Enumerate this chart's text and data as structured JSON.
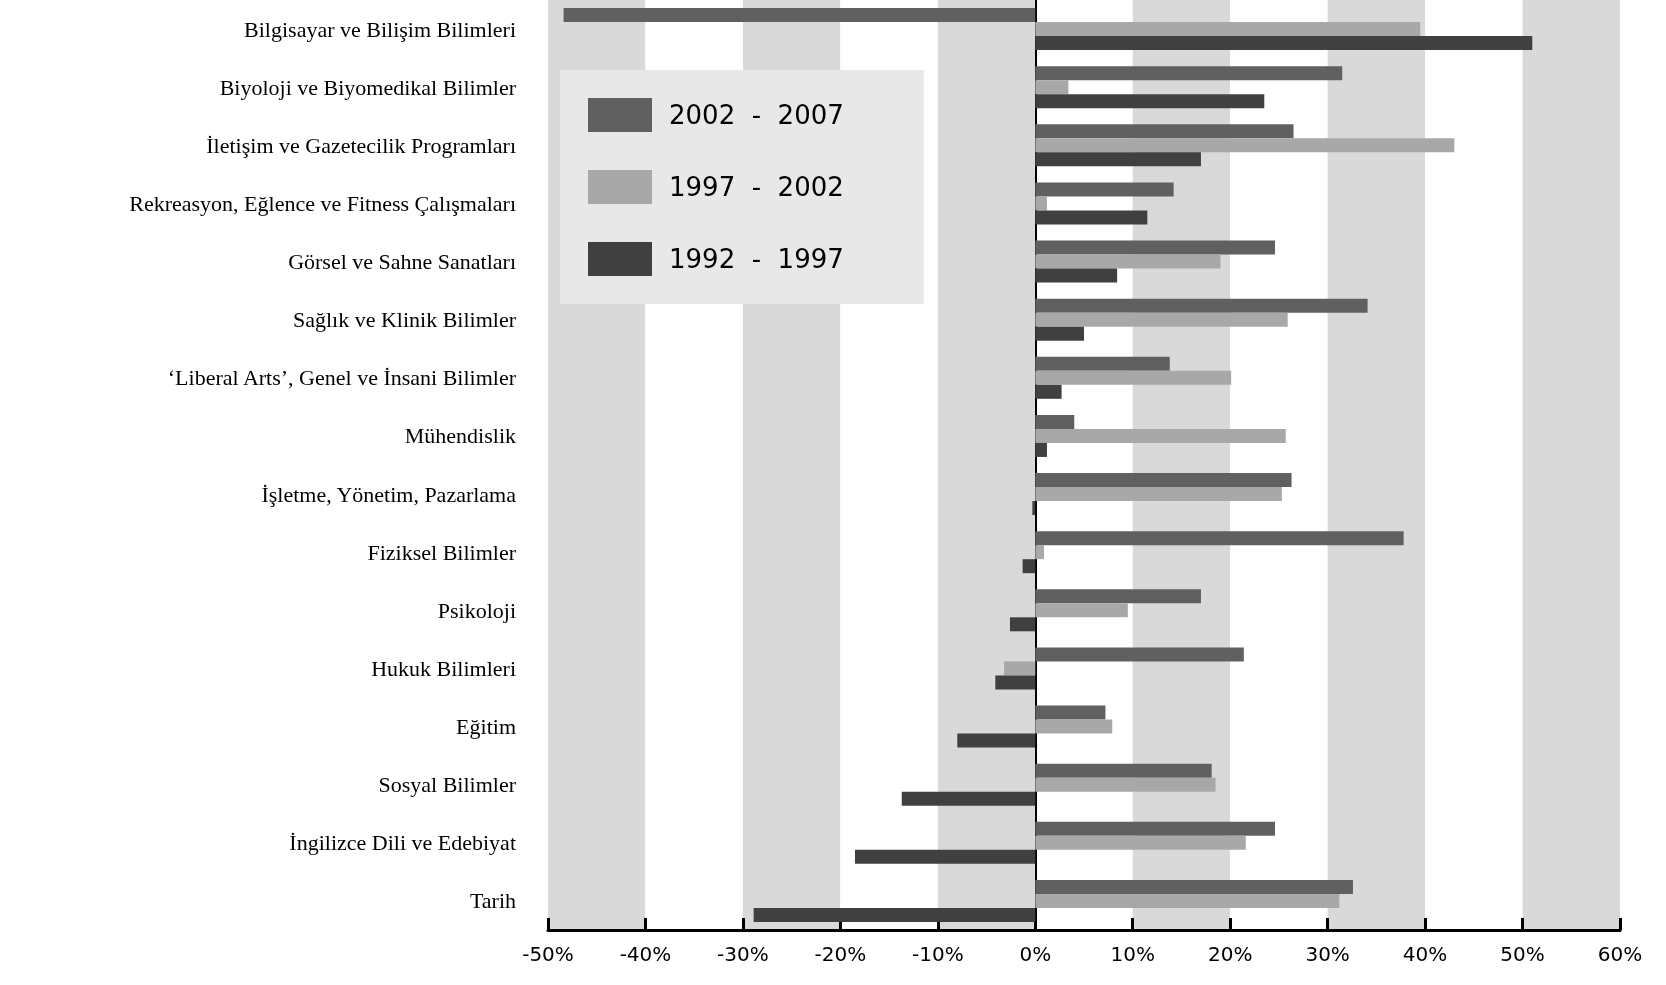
{
  "chart_data": {
    "type": "bar",
    "orientation": "horizontal",
    "categories": [
      "Bilgisayar ve Bilişim Bilimleri",
      "Biyoloji ve Biyomedikal Bilimler",
      "İletişim ve Gazetecilik Programları",
      "Rekreasyon, Eğlence ve Fitness Çalışmaları",
      "Görsel ve Sahne Sanatları",
      "Sağlık ve Klinik Bilimler",
      "‘Liberal Arts’, Genel ve İnsani Bilimler",
      "Mühendislik",
      "İşletme, Yönetim, Pazarlama",
      "Fiziksel Bilimler",
      "Psikoloji",
      "Hukuk Bilimleri",
      "Eğitim",
      "Sosyal Bilimler",
      "İngilizce Dili ve Edebiyat",
      "Tarih"
    ],
    "series": [
      {
        "name": "2002  -  2007",
        "color": "#606060",
        "values": [
          -48.4,
          31.5,
          26.5,
          14.2,
          24.6,
          34.1,
          13.8,
          4.0,
          26.3,
          37.8,
          17.0,
          21.4,
          7.2,
          18.1,
          24.6,
          32.6
        ]
      },
      {
        "name": "1997  -  2002",
        "color": "#a8a8a8",
        "values": [
          39.5,
          3.4,
          43.0,
          1.2,
          19.0,
          25.9,
          20.1,
          25.7,
          25.3,
          0.9,
          9.5,
          -3.2,
          7.9,
          18.5,
          21.6,
          31.2
        ]
      },
      {
        "name": "1992  -  1997",
        "color": "#404040",
        "values": [
          51.0,
          23.5,
          17.0,
          11.5,
          8.4,
          5.0,
          2.7,
          1.2,
          -0.3,
          -1.3,
          -2.6,
          -4.1,
          -8.0,
          -13.7,
          -18.5,
          -28.9
        ]
      }
    ],
    "xlim": [
      -50,
      60
    ],
    "xticks": [
      {
        "value": -50,
        "label": "-50%"
      },
      {
        "value": -40,
        "label": "-40%"
      },
      {
        "value": -30,
        "label": "-30%"
      },
      {
        "value": -20,
        "label": "-20%"
      },
      {
        "value": -10,
        "label": "-10%"
      },
      {
        "value": 0,
        "label": "0%"
      },
      {
        "value": 10,
        "label": "10%"
      },
      {
        "value": 20,
        "label": "20%"
      },
      {
        "value": 30,
        "label": "30%"
      },
      {
        "value": 40,
        "label": "40%"
      },
      {
        "value": 50,
        "label": "50%"
      },
      {
        "value": 60,
        "label": "60%"
      }
    ],
    "grid": "x",
    "legend": "top left"
  }
}
